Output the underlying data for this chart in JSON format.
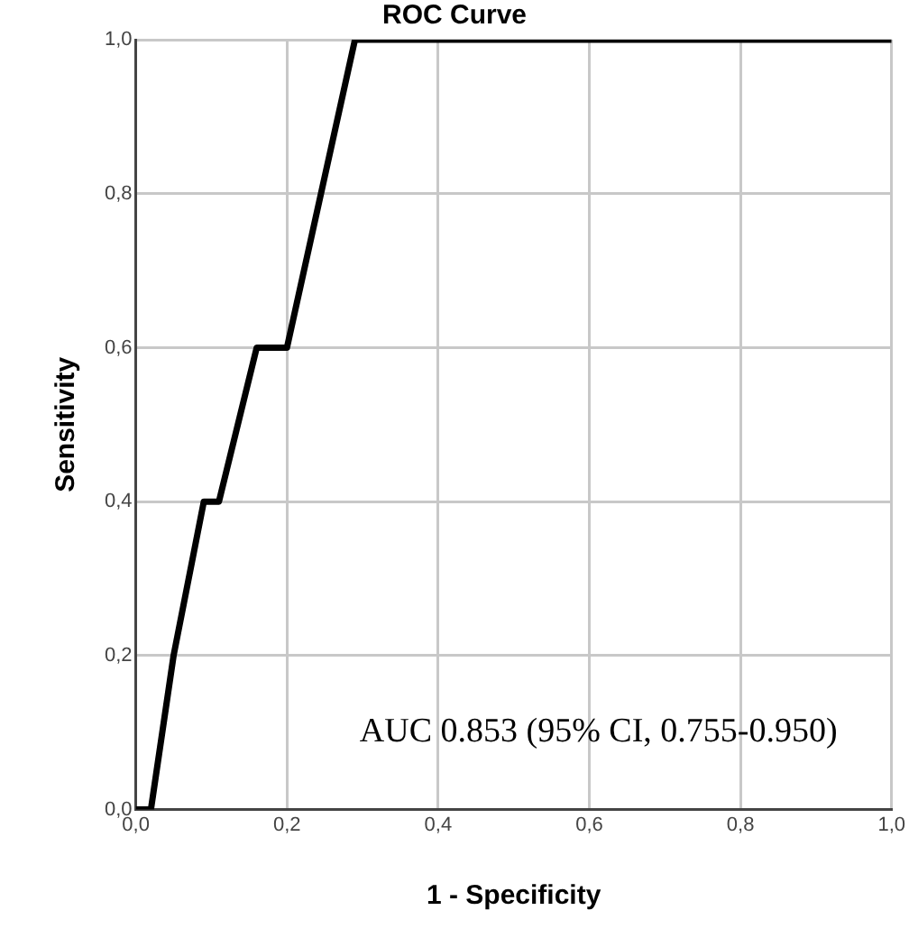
{
  "chart_data": {
    "type": "line",
    "title": "ROC Curve",
    "xlabel": "1 - Specificity",
    "ylabel": "Sensitivity",
    "x": [
      0,
      0.02,
      0.05,
      0.09,
      0.11,
      0.16,
      0.2,
      0.29,
      1
    ],
    "series": [
      {
        "color": "#000000",
        "values": [
          0,
          0,
          0.2,
          0.4,
          0.4,
          0.6,
          0.6,
          1,
          1
        ]
      }
    ],
    "xlim": [
      0,
      1
    ],
    "ylim": [
      0,
      1
    ],
    "xticks": [
      {
        "value": 0,
        "label": "0,0"
      },
      {
        "value": 0.2,
        "label": "0,2"
      },
      {
        "value": 0.4,
        "label": "0,4"
      },
      {
        "value": 0.6,
        "label": "0,6"
      },
      {
        "value": 0.8,
        "label": "0,8"
      },
      {
        "value": 1,
        "label": "1,0"
      }
    ],
    "yticks": [
      {
        "value": 0,
        "label": "0,0"
      },
      {
        "value": 0.2,
        "label": "0,2"
      },
      {
        "value": 0.4,
        "label": "0,4"
      },
      {
        "value": 0.6,
        "label": "0,6"
      },
      {
        "value": 0.8,
        "label": "0,8"
      },
      {
        "value": 1,
        "label": "1,0"
      }
    ],
    "annotations": [
      "AUC 0.853 (95% CI, 0.755-0.950)"
    ],
    "grid": true,
    "legend": false,
    "marker": "none",
    "line_style": "solid"
  }
}
